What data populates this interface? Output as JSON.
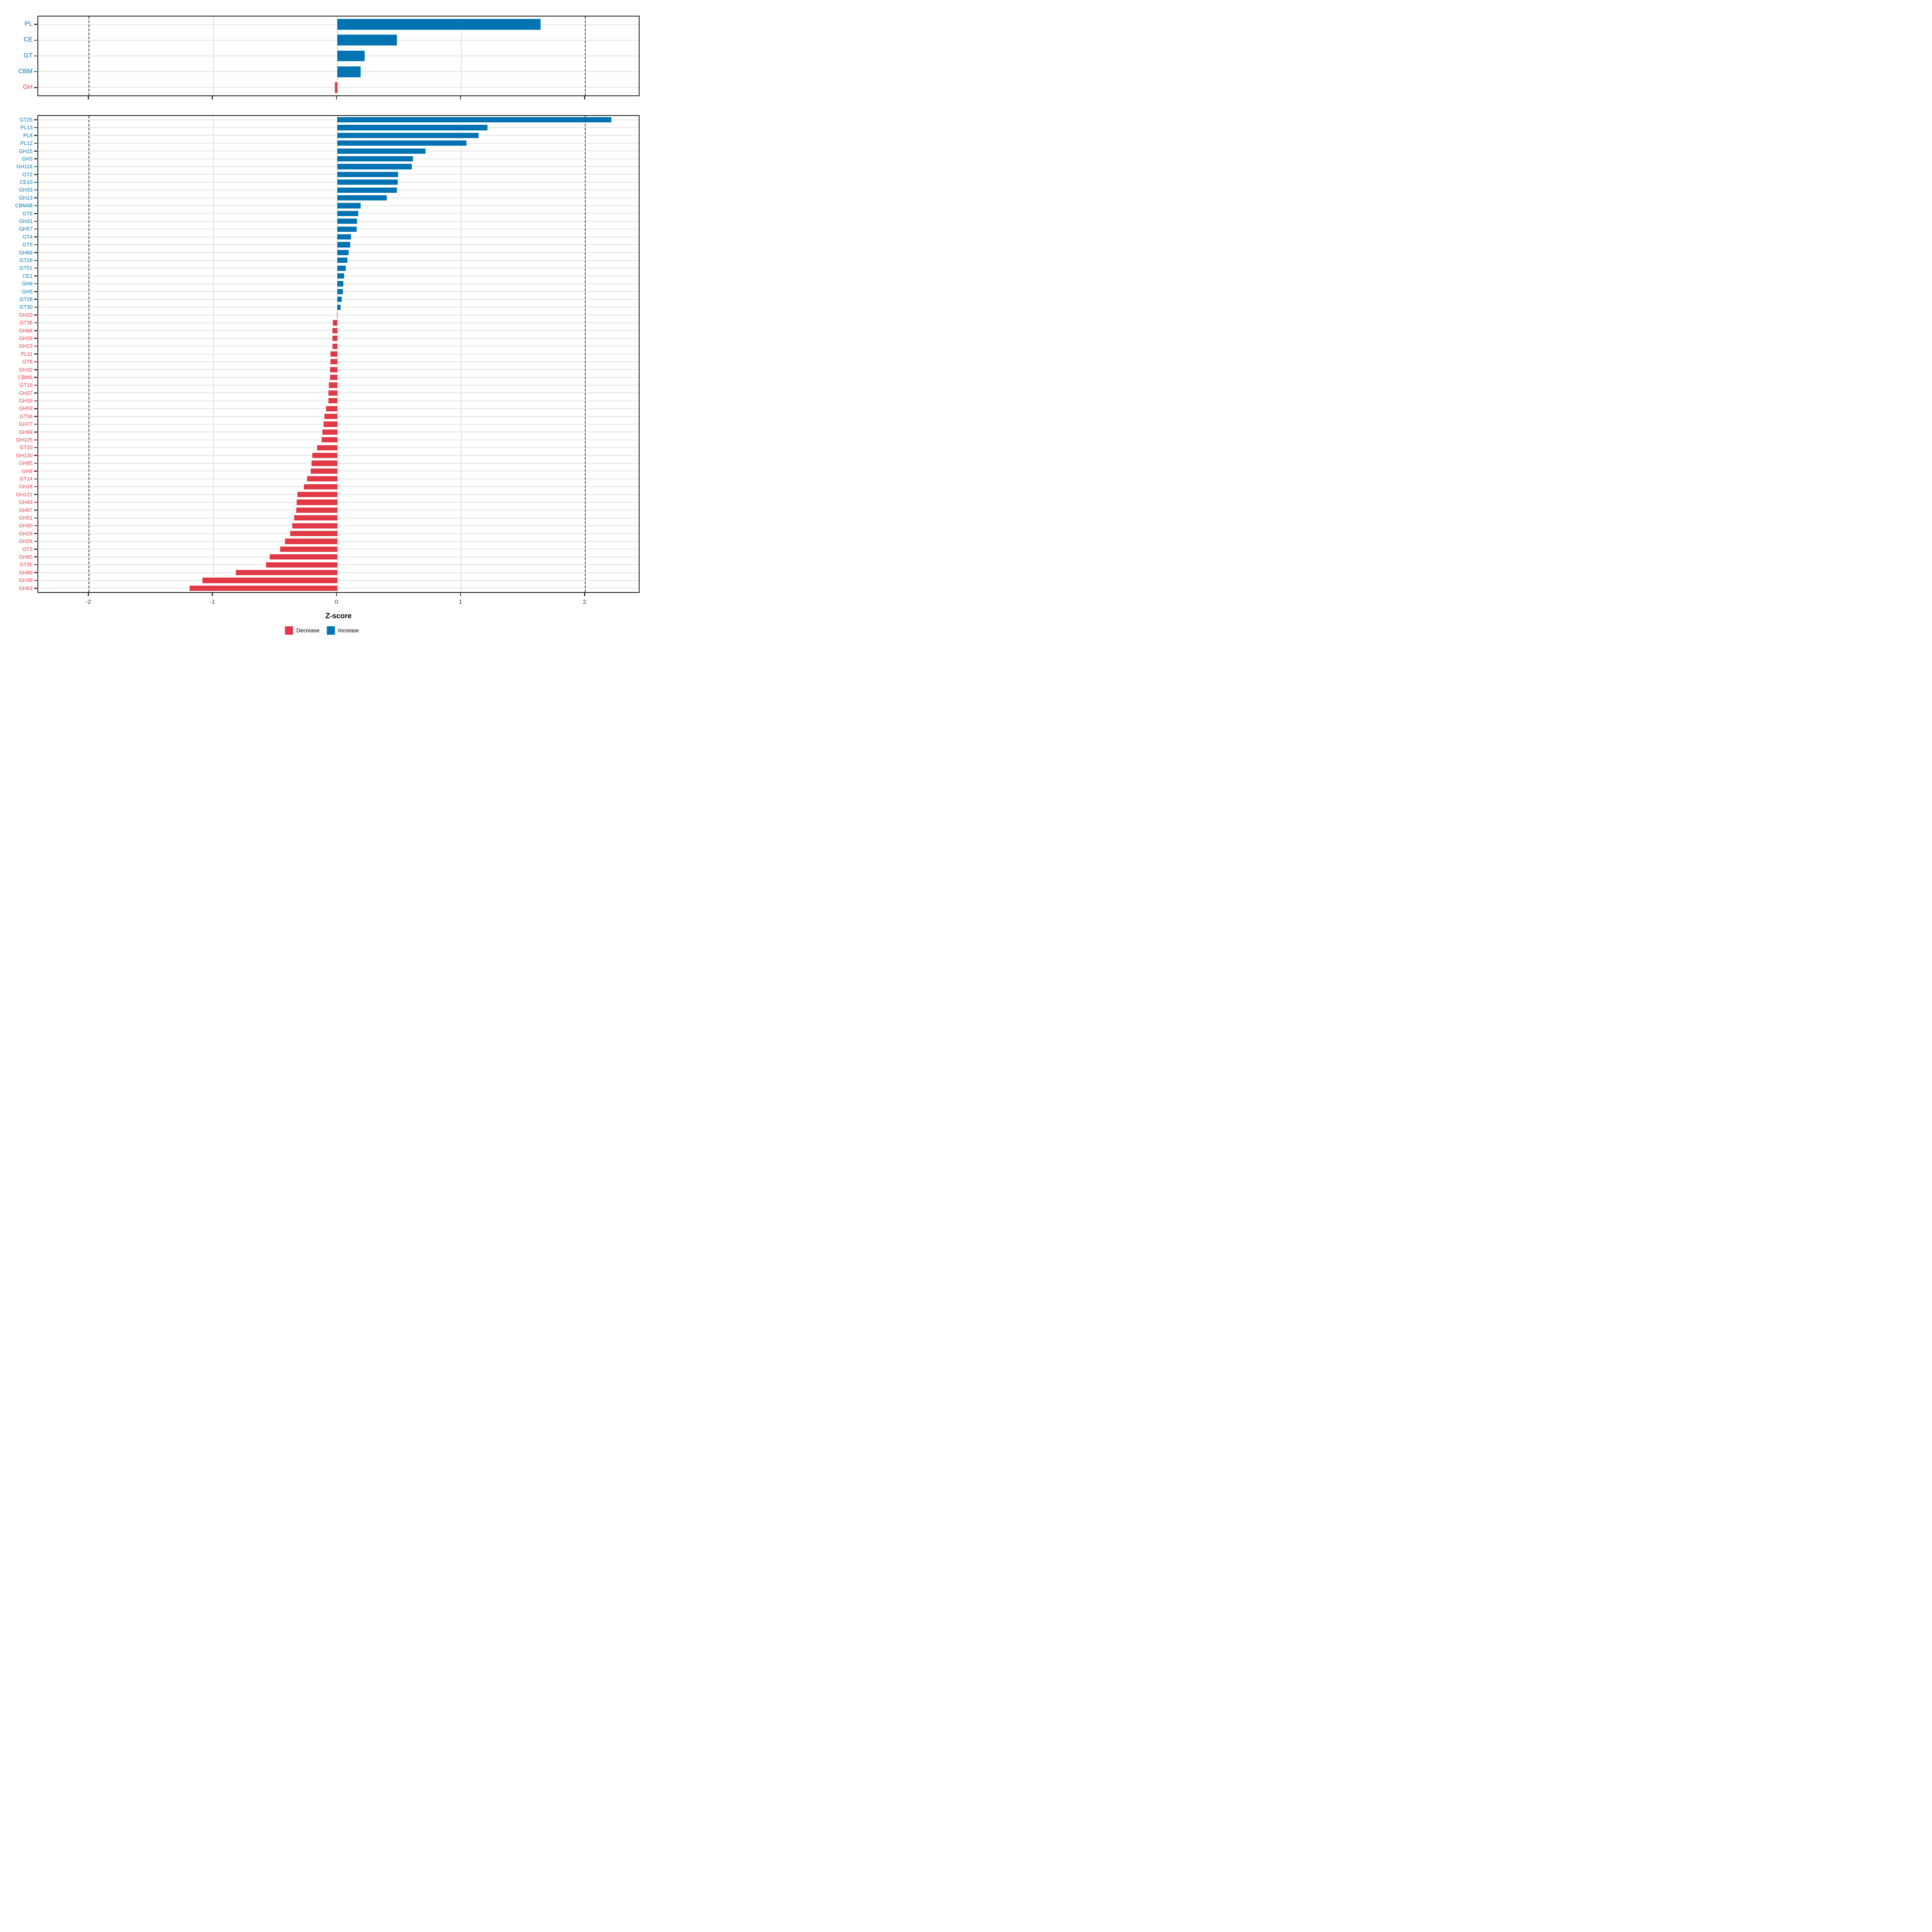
{
  "colors": {
    "increase": "#0173B3",
    "decrease": "#E23946",
    "grid": "#E3E3E3",
    "dashed_line": "#3C3C3C",
    "axis_text": "#404040",
    "panel_border": "#1A1A1A"
  },
  "axis": {
    "xlabel": "Z-score",
    "ticks": [
      "-2",
      "-1",
      "0",
      "1",
      "2"
    ],
    "tick_values": [
      -2,
      -1,
      0,
      1,
      2
    ],
    "xlim": [
      -2.41,
      2.43
    ],
    "dashed_vlines": [
      -2,
      2
    ]
  },
  "legend": [
    {
      "label": "Decrease",
      "color_key": "decrease"
    },
    {
      "label": "Increase",
      "color_key": "increase"
    }
  ],
  "chart_data": [
    {
      "type": "bar",
      "orientation": "horizontal",
      "panel": "top",
      "title": "",
      "categories": [
        "PL",
        "CE",
        "GT",
        "CBM",
        "GH"
      ],
      "values": [
        1.64,
        0.48,
        0.22,
        0.19,
        -0.02
      ],
      "series_note": "positive = Increase (blue), negative = Decrease (red)"
    },
    {
      "type": "bar",
      "orientation": "horizontal",
      "panel": "bottom",
      "title": "",
      "categories": [
        "GT25",
        "PL13",
        "PL8",
        "PL12",
        "GH15",
        "GH3",
        "GH116",
        "GT2",
        "CE10",
        "GH33",
        "GH13",
        "CBM48",
        "GT9",
        "GH31",
        "GH57",
        "GT4",
        "GT5",
        "GH66",
        "GT26",
        "GT51",
        "CE1",
        "GH9",
        "GH5",
        "GT28",
        "GT30",
        "GH20",
        "GT36",
        "GH68",
        "GH39",
        "GH23",
        "PL11",
        "GT8",
        "GH32",
        "CBM6",
        "GT19",
        "GH37",
        "GH19",
        "GH59",
        "GT56",
        "GH77",
        "GH99",
        "GH105",
        "GT20",
        "GH130",
        "GH95",
        "GH8",
        "GT14",
        "GH18",
        "GH121",
        "GH43",
        "GH97",
        "GH51",
        "GH30",
        "GH29",
        "GH26",
        "GT3",
        "GH65",
        "GT35",
        "GH88",
        "GH38",
        "GH63"
      ],
      "values": [
        2.21,
        1.21,
        1.14,
        1.04,
        0.71,
        0.61,
        0.6,
        0.49,
        0.487,
        0.48,
        0.4,
        0.19,
        0.17,
        0.16,
        0.155,
        0.11,
        0.105,
        0.09,
        0.08,
        0.067,
        0.057,
        0.05,
        0.046,
        0.036,
        0.025,
        -0.004,
        -0.034,
        -0.038,
        -0.039,
        -0.04,
        -0.054,
        -0.056,
        -0.057,
        -0.058,
        -0.068,
        -0.07,
        -0.071,
        -0.089,
        -0.105,
        -0.109,
        -0.121,
        -0.126,
        -0.161,
        -0.202,
        -0.208,
        -0.214,
        -0.244,
        -0.27,
        -0.322,
        -0.326,
        -0.329,
        -0.348,
        -0.362,
        -0.379,
        -0.423,
        -0.461,
        -0.546,
        -0.573,
        -0.816,
        -1.086,
        -1.19
      ],
      "series_note": "positive = Increase (blue), negative = Decrease (red)"
    }
  ]
}
